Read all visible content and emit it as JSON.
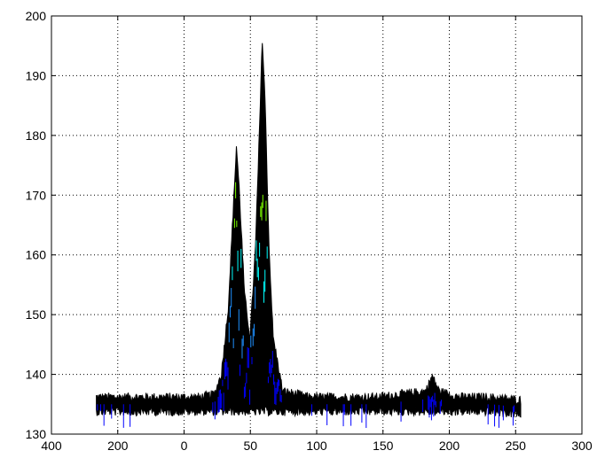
{
  "chart_data": {
    "type": "line",
    "title": "",
    "xlabel": "",
    "ylabel": "",
    "grid": true,
    "grid_style": "dotted",
    "x_tick_labels": [
      "400",
      "200",
      "0",
      "50",
      "100",
      "150",
      "200",
      "250",
      "300"
    ],
    "y_ticks": [
      130,
      140,
      150,
      160,
      170,
      180,
      190,
      200
    ],
    "ylim": [
      130,
      200
    ],
    "x_range": [
      -90,
      300
    ],
    "baseline": 135,
    "noise_amplitude": 1.5,
    "series": [
      {
        "x": [
          -57,
          -40,
          -20,
          0,
          20,
          30,
          35,
          40,
          44,
          46,
          48,
          52,
          56,
          60,
          63,
          65,
          67,
          70,
          73,
          80,
          100,
          150,
          185,
          190,
          195,
          210,
          230,
          255
        ],
        "y": [
          135,
          135,
          135,
          135,
          135,
          135.5,
          139,
          150,
          168,
          177,
          170,
          152,
          145,
          160,
          180,
          195,
          185,
          160,
          145,
          136,
          135,
          135,
          136,
          138.5,
          136,
          135,
          135,
          134.5
        ]
      }
    ],
    "colors": {
      "fill": "#000000",
      "streaks": [
        "#0000ff",
        "#1e90ff",
        "#00ffff",
        "#7fff00",
        "#ffff00",
        "#ff0000"
      ]
    }
  }
}
